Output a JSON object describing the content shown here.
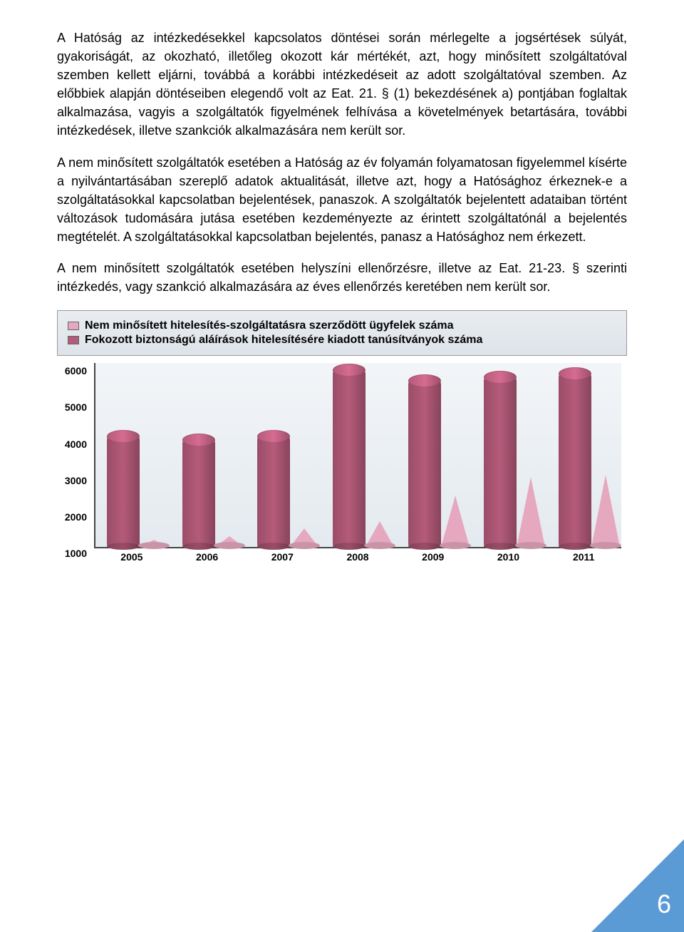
{
  "paragraphs": {
    "p1": "A Hatóság az intézkedésekkel kapcsolatos döntései során mérlegelte a jogsértések súlyát, gyakoriságát, az okozható, illetőleg okozott kár mértékét, azt, hogy minősített szolgáltatóval szemben kellett eljárni, továbbá a korábbi intézkedéseit az adott szolgáltatóval szemben. Az előbbiek alapján döntéseiben elegendő volt az Eat. 21. § (1) bekezdésének a) pontjában foglaltak alkalmazása, vagyis a szolgáltatók figyelmének felhívása a követelmények betartására, további intézkedések, illetve szankciók alkalmazására nem került sor.",
    "p2": "A nem minősített szolgáltatók esetében a Hatóság az év folyamán folyamatosan figyelemmel kísérte a nyilvántartásában szereplő adatok aktualitását, illetve azt, hogy a Hatósághoz érkeznek-e a szolgáltatásokkal kapcsolatban bejelentések, panaszok. A szolgáltatók bejelentett adataiban történt változások tudomására jutása esetében kezdeményezte az érintett szolgáltatónál a bejelentés megtételét. A szolgáltatásokkal kapcsolatban bejelentés, panasz a Hatósághoz nem érkezett.",
    "p3": "A nem minősített szolgáltatók esetében helyszíni ellenőrzésre, illetve az Eat. 21-23. § szerinti intézkedés, vagy szankció alkalmazására az éves ellenőrzés keretében nem került sor."
  },
  "legend": {
    "series1": "Nem minősített hitelesítés-szolgáltatásra szerződött ügyfelek száma",
    "series2": "Fokozott biztonságú aláírások hitelesítésére kiadott tanúsítványok száma"
  },
  "chart": {
    "type": "bar",
    "categories": [
      "2005",
      "2006",
      "2007",
      "2008",
      "2009",
      "2010",
      "2011"
    ],
    "values_cylinder": [
      4000,
      3900,
      4000,
      5800,
      5500,
      5600,
      5700
    ],
    "values_cone": [
      1200,
      1300,
      1500,
      1700,
      2400,
      2900,
      2950
    ],
    "ylim": [
      1000,
      6000
    ],
    "ytick_step": 1000,
    "cylinder_color": "#b55b7a",
    "cone_color": "#e6a8bf",
    "background_gradient_top": "#f2f5f8",
    "background_gradient_bottom": "#e4eaef",
    "axis_color": "#444444",
    "label_fontsize": 14,
    "label_fontweight": "bold"
  },
  "page": {
    "number": "6",
    "corner_color": "#5b9bd5",
    "number_color": "#ffffff"
  },
  "colors": {
    "text": "#000000",
    "legend_bg_top": "#e9edf1",
    "legend_bg_bottom": "#dde3e9",
    "swatch_border": "#666666"
  }
}
